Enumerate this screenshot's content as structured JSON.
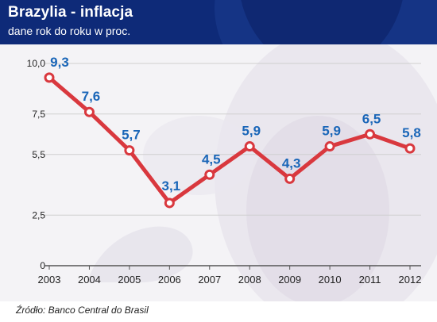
{
  "header": {
    "title": "Brazylia - inflacja",
    "subtitle": "dane rok do roku w proc."
  },
  "source": "Źródło: Banco Central do Brasil",
  "colors": {
    "header_bg": "#0e2a78",
    "line": "#d9383e",
    "marker_fill": "#ffffff",
    "data_label": "#1a66b8",
    "grid": "#cfcfcf"
  },
  "chart_data": {
    "type": "line",
    "categories": [
      "2003",
      "2004",
      "2005",
      "2006",
      "2007",
      "2008",
      "2009",
      "2010",
      "2011",
      "2012"
    ],
    "series": [
      {
        "values": [
          9.3,
          7.6,
          5.7,
          3.1,
          4.5,
          5.9,
          4.3,
          5.9,
          6.5,
          5.8
        ],
        "labels": [
          "9,3",
          "7,6",
          "5,7",
          "3,1",
          "4,5",
          "5,9",
          "4,3",
          "5,9",
          "6,5",
          "5,8"
        ]
      }
    ],
    "ylim": [
      0,
      10
    ],
    "yticks": [
      0,
      2.5,
      5.5,
      7.5,
      10
    ],
    "ytick_labels": [
      "0",
      "2,5",
      "5,5",
      "7,5",
      "10,0"
    ],
    "grid": "horizontal",
    "title": "Brazylia - inflacja",
    "subtitle": "dane rok do roku w proc.",
    "xlabel": "",
    "ylabel": ""
  }
}
